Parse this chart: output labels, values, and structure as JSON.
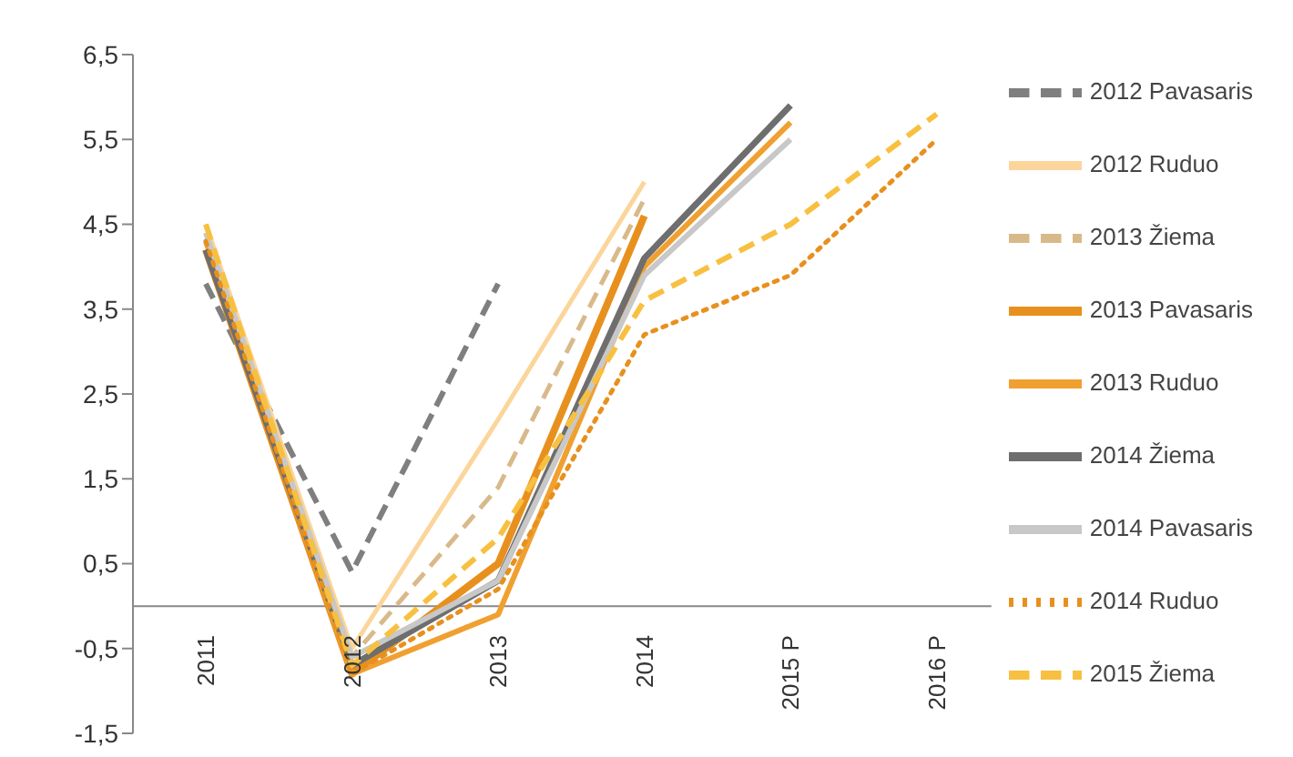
{
  "chart_data": {
    "type": "line",
    "categories": [
      "2011",
      "2012",
      "2013",
      "2014",
      "2015 P",
      "2016 P"
    ],
    "ylim": [
      -1.5,
      6.5
    ],
    "yticks": [
      {
        "value": -1.5,
        "label": "-1,5"
      },
      {
        "value": -0.5,
        "label": "-0,5"
      },
      {
        "value": 0.5,
        "label": "0,5"
      },
      {
        "value": 1.5,
        "label": "1,5"
      },
      {
        "value": 2.5,
        "label": "2,5"
      },
      {
        "value": 3.5,
        "label": "3,5"
      },
      {
        "value": 4.5,
        "label": "4,5"
      },
      {
        "value": 5.5,
        "label": "5,5"
      },
      {
        "value": 6.5,
        "label": "6,5"
      }
    ],
    "legend": "right",
    "marker": "none",
    "series": [
      {
        "name": "2012 Pavasaris",
        "color": "#7f7f7f",
        "line_style": "dashed",
        "values": [
          3.8,
          0.4,
          3.8,
          null,
          null,
          null
        ]
      },
      {
        "name": "2012 Ruduo",
        "color": "#fcd59a",
        "line_style": "solid",
        "values": [
          4.5,
          -0.5,
          2.2,
          5.0,
          null,
          null
        ]
      },
      {
        "name": "2013 Žiema",
        "color": "#d9b98a",
        "line_style": "dashed",
        "values": [
          4.3,
          -0.6,
          1.4,
          4.8,
          null,
          null
        ]
      },
      {
        "name": "2013 Pavasaris",
        "color": "#e8901e",
        "line_style": "solid",
        "values": [
          4.2,
          -0.8,
          0.5,
          4.6,
          null,
          null
        ]
      },
      {
        "name": "2013 Ruduo",
        "color": "#f0a030",
        "line_style": "solid",
        "values": [
          4.3,
          -0.8,
          -0.1,
          4.0,
          5.7,
          null
        ]
      },
      {
        "name": "2014 Žiema",
        "color": "#6e6e6e",
        "line_style": "solid",
        "values": [
          4.2,
          -0.7,
          0.3,
          4.1,
          5.9,
          null
        ]
      },
      {
        "name": "2014 Pavasaris",
        "color": "#c8c8c8",
        "line_style": "solid",
        "values": [
          4.4,
          -0.6,
          0.3,
          3.9,
          5.5,
          null
        ]
      },
      {
        "name": "2014 Ruduo",
        "color": "#e8901e",
        "line_style": "dotted",
        "values": [
          4.3,
          -0.8,
          0.2,
          3.2,
          3.9,
          5.5
        ]
      },
      {
        "name": "2015 Žiema",
        "color": "#f8c040",
        "line_style": "dashed",
        "values": [
          4.5,
          -0.7,
          0.8,
          3.6,
          4.5,
          5.8
        ]
      }
    ]
  }
}
